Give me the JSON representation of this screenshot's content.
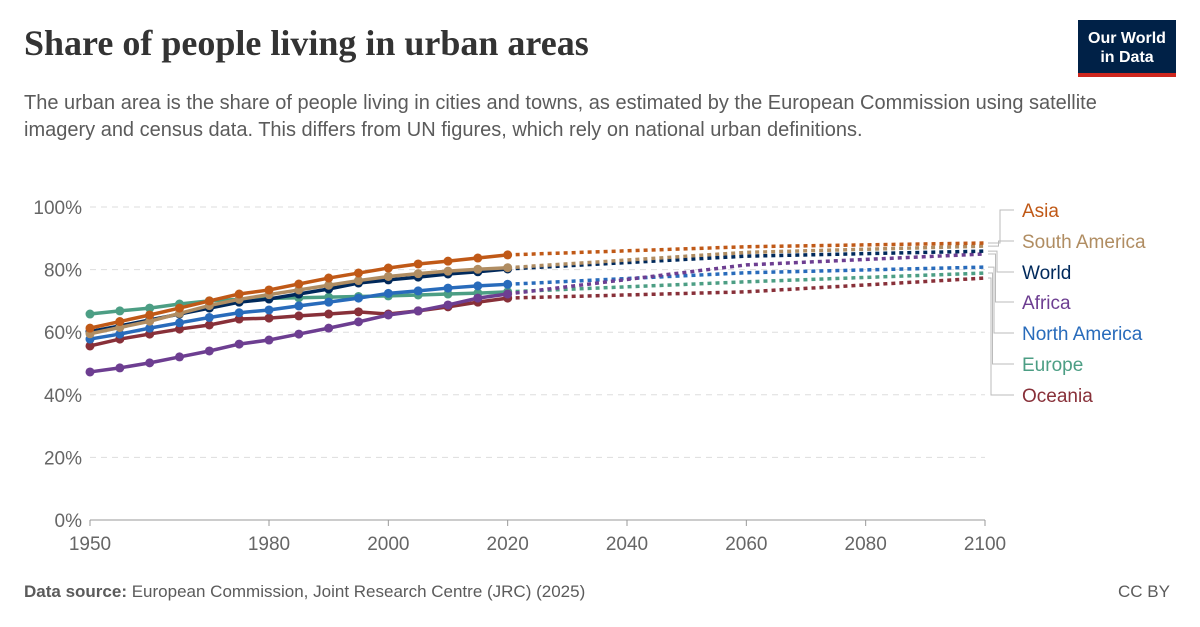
{
  "header": {
    "title": "Share of people living in urban areas",
    "subtitle": "The urban area is the share of people living in cities and towns, as estimated by the European Commission using satellite imagery and census data. This differs from UN figures, which rely on national urban definitions.",
    "logo": "Our World in Data"
  },
  "footer": {
    "source_label": "Data source:",
    "source": "European Commission, Joint Research Centre (JRC) (2025)",
    "license": "CC BY"
  },
  "chart_data": {
    "type": "line",
    "title": "Share of people living in urban areas",
    "xlim": [
      1948,
      2100
    ],
    "ylim": [
      0,
      100
    ],
    "x_ticks": [
      "1950",
      "1980",
      "2000",
      "2020",
      "2040",
      "2060",
      "2080",
      "2100"
    ],
    "y_ticks": [
      "0%",
      "20%",
      "40%",
      "60%",
      "80%",
      "100%"
    ],
    "grid": "horizontal dashed",
    "legend": "right, line-end labels",
    "x": [
      1950,
      1955,
      1960,
      1965,
      1970,
      1975,
      1980,
      1985,
      1990,
      1995,
      2000,
      2005,
      2010,
      2015,
      2020
    ],
    "projection_x": [
      2020,
      2060,
      2100
    ],
    "series": [
      {
        "name": "Asia",
        "color": "#c05917",
        "values": [
          61.3,
          63.4,
          65.5,
          67.7,
          70.0,
          72.2,
          73.5,
          75.4,
          77.3,
          78.9,
          80.5,
          81.8,
          82.7,
          83.7,
          84.7
        ],
        "projection": [
          84.7,
          87.3,
          88.5
        ]
      },
      {
        "name": "South America",
        "color": "#b08d62",
        "values": [
          59.5,
          61.5,
          63.5,
          66.0,
          68.5,
          70.5,
          72.0,
          73.5,
          75.0,
          76.5,
          77.8,
          78.7,
          79.5,
          80.1,
          80.6
        ],
        "projection": [
          80.6,
          85.5,
          87.5
        ]
      },
      {
        "name": "World",
        "color": "#00295b",
        "values": [
          60.2,
          62.0,
          63.9,
          65.8,
          67.7,
          69.6,
          70.6,
          72.2,
          73.8,
          75.7,
          76.7,
          77.6,
          78.6,
          79.3,
          80.2
        ],
        "projection": [
          80.2,
          84.3,
          85.9
        ]
      },
      {
        "name": "Africa",
        "color": "#6d3e91",
        "values": [
          47.3,
          48.6,
          50.2,
          52.1,
          54.0,
          56.2,
          57.5,
          59.4,
          61.3,
          63.3,
          65.5,
          66.8,
          68.7,
          70.9,
          72.2
        ],
        "projection": [
          72.2,
          81.5,
          85.0
        ]
      },
      {
        "name": "North America",
        "color": "#286bbb",
        "values": [
          57.8,
          59.4,
          61.3,
          63.0,
          64.7,
          66.2,
          67.1,
          68.4,
          69.6,
          70.9,
          72.4,
          73.2,
          74.1,
          74.8,
          75.3
        ],
        "projection": [
          75.3,
          79.0,
          80.8
        ]
      },
      {
        "name": "Europe",
        "color": "#4c9e84",
        "values": [
          65.8,
          66.8,
          67.7,
          69.0,
          70.0,
          70.5,
          70.8,
          71.0,
          71.2,
          71.4,
          71.6,
          71.9,
          72.2,
          72.5,
          72.9
        ],
        "projection": [
          72.9,
          76.1,
          78.9
        ]
      },
      {
        "name": "Oceania",
        "color": "#883039",
        "values": [
          55.6,
          57.8,
          59.4,
          61.0,
          62.3,
          64.2,
          64.5,
          65.2,
          65.8,
          66.5,
          65.8,
          66.8,
          68.1,
          69.6,
          70.9
        ],
        "projection": [
          70.9,
          72.9,
          77.3
        ]
      }
    ]
  }
}
